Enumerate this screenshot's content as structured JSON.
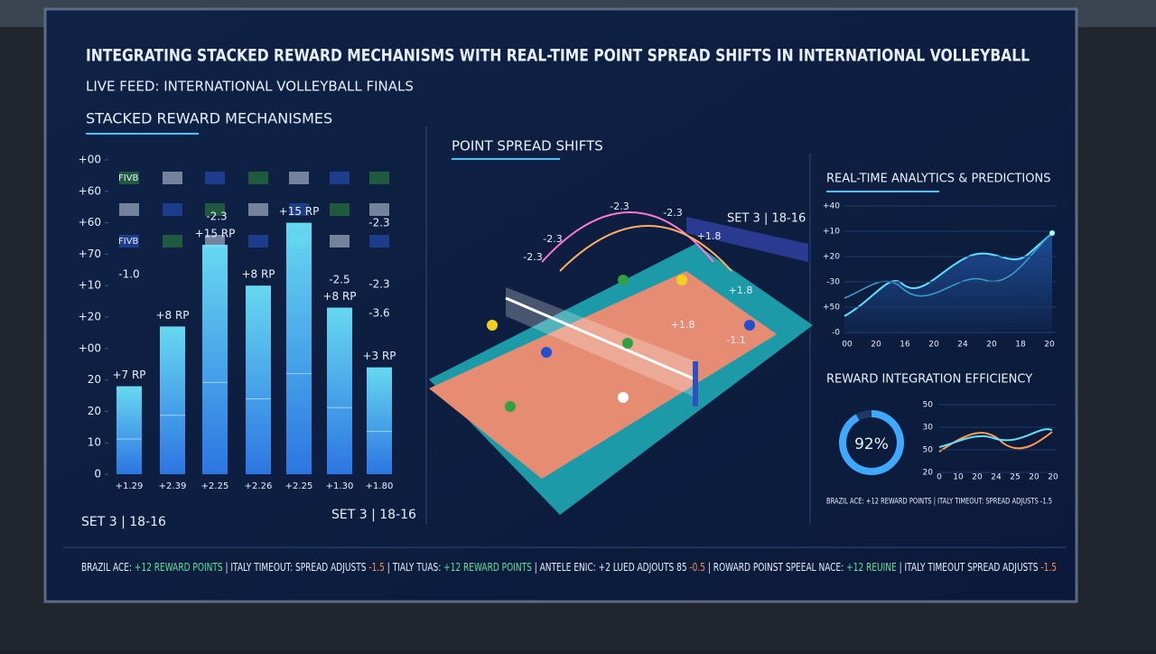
{
  "header": {
    "title": "INTEGRATING STACKED REWARD MECHANISMS WITH REAL-TIME POINT SPREAD SHIFTS IN INTERNATIONAL VOLLEYBALL",
    "subtitle": "LIVE FEED: INTERNATIONAL VOLLEYBALL FINALS"
  },
  "rewards": {
    "title": "STACKED REWARD MECHANISMES",
    "ylim": [
      0,
      10
    ],
    "yticks": [
      0,
      {
        "value": 1,
        "label": "10"
      },
      {
        "value": 2,
        "label": "20"
      },
      {
        "value": 3,
        "label": "20"
      },
      {
        "value": 4,
        "label": "+00"
      },
      {
        "value": 5,
        "label": "+20"
      },
      {
        "value": 6,
        "label": "+10"
      },
      {
        "value": 7,
        "label": "+70"
      },
      {
        "value": 8,
        "label": "+60"
      },
      {
        "value": 9,
        "label": "+60"
      },
      {
        "value": 10,
        "label": "+00"
      }
    ],
    "categories": [
      "+1.29",
      "+2.39",
      "+2.25",
      "+2.26",
      "+2.25",
      "+1.30",
      "+1.80"
    ],
    "values": [
      2.8,
      4.7,
      7.3,
      6.0,
      8.0,
      5.3,
      3.4
    ],
    "value_labels": [
      "+7 RP",
      "+8 RP",
      "+15 RP",
      "+8 RP",
      "+15 RP",
      "+8 RP",
      "+3 RP"
    ],
    "notes": [
      "-1.0",
      "-2.3",
      "-2.3",
      "-2.5",
      "-2.3",
      "-3.6"
    ],
    "logos": [
      "FIVB",
      "FIVB"
    ],
    "footer_left": "SET 3 | 18-16",
    "footer_right": "SET 3 | 18-16"
  },
  "court": {
    "title": "POINT SPREAD SHIFTS",
    "score": "SET 3 | 18-16",
    "labels": [
      "-2.3",
      "-2.3",
      "-2.3",
      "-2.3",
      "+1.8",
      "+1.8",
      "+1.8",
      "-1.1"
    ]
  },
  "analytics": {
    "title": "REAL-TIME ANALYTICS & PREDICTIONS",
    "y_labels": [
      "+40",
      "+10",
      "+20",
      "-30",
      "+50",
      "-0"
    ],
    "x_labels": [
      "00",
      "20",
      "16",
      "20",
      "24",
      "20",
      "18",
      "20"
    ]
  },
  "efficiency": {
    "title": "REWARD INTEGRATION EFFICIENCY",
    "value": 92,
    "value_label": "92%",
    "y_labels": [
      "50",
      "30",
      "50",
      "20"
    ],
    "x_labels": [
      "0",
      "10",
      "20",
      "24",
      "25",
      "20",
      "20"
    ],
    "ticker": "BRAZIL ACE: +12 REWARD POINTS | ITALY TIMEOUT: SPREAD ADJUSTS -1.5"
  },
  "ticker": [
    {
      "text": "BRAZIL ACE: ",
      "color": "#e8f0ff"
    },
    {
      "text": "+12 REWARD POINTS",
      "color": "#5fe39a"
    },
    {
      "text": " | ITALY TIMEOUT: SPREAD ADJUSTS ",
      "color": "#e8f0ff"
    },
    {
      "text": "-1.5",
      "color": "#ff8a4a"
    },
    {
      "text": " | TIALY TUAS: ",
      "color": "#e8f0ff"
    },
    {
      "text": "+12 REWARD POINTS",
      "color": "#5fe39a"
    },
    {
      "text": " | ANTELE ENIC: +2 LUED ADJOUTS 85 ",
      "color": "#e8f0ff"
    },
    {
      "text": "-0.5",
      "color": "#ff8a4a"
    },
    {
      "text": " | ROWARD POINST SPEEAL NACE: ",
      "color": "#e8f0ff"
    },
    {
      "text": "+12 REUINE",
      "color": "#5fe39a"
    },
    {
      "text": " | ITALY TIMEOUT SPREAD ADJUSTS ",
      "color": "#e8f0ff"
    },
    {
      "text": "-1.5",
      "color": "#ff8a4a"
    }
  ]
}
